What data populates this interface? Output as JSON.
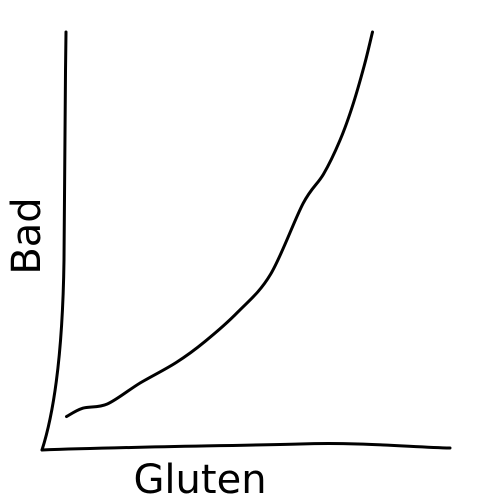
{
  "chart_data": {
    "type": "line",
    "title": "",
    "xlabel": "Gluten",
    "ylabel": "Bad",
    "grid": false,
    "legend": "none",
    "xlim": [
      0,
      10
    ],
    "ylim": [
      0,
      10
    ],
    "series": [
      {
        "color": "#000000",
        "x": [
          0.6,
          1.0,
          1.6,
          2.4,
          3.3,
          4.0,
          4.8,
          5.6,
          6.4,
          6.9,
          7.3,
          7.6,
          7.9,
          8.1
        ],
        "y": [
          0.8,
          1.0,
          1.1,
          1.6,
          2.1,
          2.6,
          3.3,
          4.2,
          5.9,
          6.6,
          7.4,
          8.2,
          9.2,
          10.0
        ]
      }
    ]
  }
}
